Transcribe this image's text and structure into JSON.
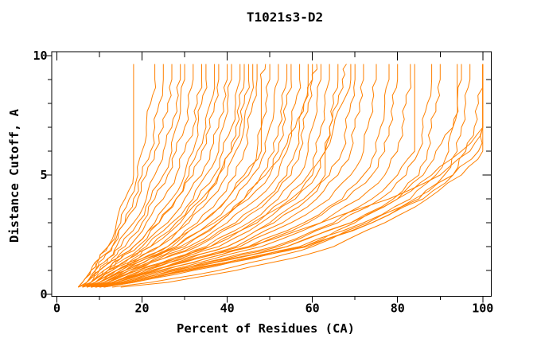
{
  "title": "T1021s3-D2",
  "colors": {
    "curve": "#FF8000",
    "axis": "#000000",
    "text": "#000000",
    "background": "#FFFFFF"
  },
  "axes": {
    "x_label": "Percent of Residues (CA)",
    "y_label": "Distance Cutoff, A",
    "x_tick_labels": [
      "0",
      "20",
      "40",
      "60",
      "80",
      "100"
    ],
    "y_tick_labels": [
      "0",
      "5",
      "10"
    ]
  },
  "chart_data": {
    "type": "line",
    "title": "T1021s3-D2",
    "xlabel": "Percent of Residues (CA)",
    "ylabel": "Distance Cutoff, A",
    "xlim": [
      0,
      100
    ],
    "ylim": [
      0,
      10
    ],
    "grid": false,
    "legend": null,
    "x_ticks_major": [
      0,
      20,
      40,
      60,
      80,
      100
    ],
    "x_ticks_minor": [
      10,
      30,
      50,
      70,
      90
    ],
    "y_ticks_major": [
      0,
      5,
      10
    ],
    "y_ticks_minor": [
      1,
      2,
      3,
      4,
      6,
      7,
      8,
      9
    ],
    "cutoff_levels": [
      0.3,
      0.5,
      1,
      1.5,
      2,
      3,
      4,
      5,
      6,
      7,
      8,
      9,
      9.65
    ],
    "curves": [
      [
        5,
        6,
        8,
        10,
        12,
        14,
        16,
        18,
        18,
        18,
        18,
        18,
        18
      ],
      [
        5,
        6,
        8,
        10,
        12,
        15,
        17,
        19,
        20,
        21,
        22,
        23,
        23
      ],
      [
        6,
        7,
        9,
        11,
        13,
        16,
        18,
        20,
        22,
        23,
        24,
        25,
        25
      ],
      [
        5,
        6,
        8,
        10,
        13,
        16,
        19,
        21,
        23,
        25,
        26,
        27,
        27
      ],
      [
        6,
        7,
        9,
        12,
        14,
        18,
        21,
        23,
        25,
        27,
        28,
        29,
        29
      ],
      [
        7,
        8,
        10,
        12,
        15,
        19,
        22,
        25,
        27,
        28,
        29,
        30,
        30
      ],
      [
        5,
        7,
        10,
        13,
        16,
        20,
        23,
        26,
        28,
        30,
        31,
        32,
        32
      ],
      [
        6,
        8,
        11,
        14,
        17,
        21,
        25,
        28,
        30,
        32,
        33,
        34,
        34
      ],
      [
        7,
        9,
        12,
        15,
        18,
        23,
        27,
        30,
        32,
        33,
        34,
        35,
        35
      ],
      [
        6,
        8,
        11,
        15,
        19,
        24,
        28,
        31,
        33,
        35,
        36,
        37,
        37
      ],
      [
        5,
        7,
        10,
        14,
        18,
        24,
        28,
        32,
        34,
        36,
        37,
        38,
        38
      ],
      [
        6,
        8,
        12,
        16,
        20,
        26,
        30,
        34,
        36,
        38,
        39,
        40,
        40
      ],
      [
        7,
        9,
        13,
        17,
        21,
        27,
        32,
        35,
        38,
        39,
        40,
        41,
        41
      ],
      [
        6,
        9,
        13,
        18,
        22,
        28,
        33,
        37,
        39,
        41,
        42,
        43,
        43
      ],
      [
        8,
        10,
        14,
        19,
        24,
        30,
        35,
        38,
        41,
        42,
        43,
        44,
        44
      ],
      [
        5,
        8,
        12,
        17,
        22,
        29,
        34,
        38,
        41,
        43,
        44,
        45,
        45
      ],
      [
        6,
        9,
        14,
        19,
        24,
        31,
        36,
        40,
        42,
        44,
        45,
        46,
        46
      ],
      [
        7,
        10,
        15,
        20,
        26,
        33,
        38,
        42,
        44,
        45,
        46,
        47,
        47
      ],
      [
        8,
        11,
        16,
        21,
        27,
        34,
        40,
        44,
        48,
        48,
        48,
        48,
        49
      ],
      [
        6,
        9,
        14,
        20,
        26,
        34,
        40,
        45,
        47,
        48,
        49,
        50,
        50
      ],
      [
        7,
        10,
        16,
        22,
        28,
        36,
        42,
        46,
        49,
        50,
        51,
        52,
        52
      ],
      [
        8,
        12,
        17,
        23,
        30,
        38,
        44,
        48,
        51,
        52,
        53,
        54,
        54
      ],
      [
        6,
        10,
        16,
        22,
        29,
        38,
        45,
        50,
        52,
        53,
        54,
        55,
        55
      ],
      [
        7,
        11,
        17,
        24,
        31,
        40,
        47,
        52,
        54,
        55,
        56,
        57,
        57
      ],
      [
        8,
        12,
        18,
        25,
        32,
        42,
        49,
        54,
        56,
        57,
        58,
        59,
        59
      ],
      [
        7,
        11,
        18,
        25,
        33,
        43,
        50,
        55,
        57,
        58,
        59,
        60,
        60
      ],
      [
        7,
        10,
        15,
        21,
        28,
        37,
        44,
        49,
        53,
        56,
        58,
        60,
        61
      ],
      [
        8,
        12,
        19,
        27,
        35,
        45,
        52,
        57,
        59,
        60,
        61,
        62,
        62
      ],
      [
        7,
        12,
        19,
        28,
        36,
        46,
        54,
        59,
        61,
        62,
        63,
        64,
        64
      ],
      [
        8,
        13,
        20,
        29,
        38,
        48,
        56,
        61,
        63,
        64,
        65,
        66,
        66
      ],
      [
        9,
        14,
        22,
        31,
        40,
        50,
        58,
        63,
        63,
        64,
        66,
        67,
        68
      ],
      [
        9,
        13,
        20,
        28,
        36,
        47,
        55,
        60,
        63,
        65,
        67,
        69,
        69
      ],
      [
        8,
        13,
        21,
        30,
        40,
        51,
        59,
        64,
        67,
        68,
        69,
        70,
        70
      ],
      [
        9,
        14,
        23,
        32,
        42,
        53,
        61,
        66,
        69,
        70,
        71,
        72,
        72
      ],
      [
        8,
        14,
        23,
        33,
        43,
        55,
        64,
        69,
        72,
        73,
        74,
        75,
        75
      ],
      [
        9,
        15,
        25,
        35,
        45,
        58,
        67,
        72,
        75,
        76,
        77,
        78,
        78
      ],
      [
        8,
        14,
        24,
        35,
        46,
        59,
        68,
        74,
        77,
        78,
        79,
        80,
        80
      ],
      [
        9,
        15,
        26,
        37,
        48,
        62,
        71,
        77,
        80,
        81,
        82,
        83,
        83
      ],
      [
        10,
        16,
        27,
        39,
        51,
        65,
        74,
        80,
        84,
        84,
        84,
        84,
        84
      ],
      [
        9,
        16,
        27,
        40,
        52,
        66,
        76,
        82,
        85,
        86,
        87,
        88,
        88
      ],
      [
        10,
        17,
        29,
        42,
        54,
        69,
        79,
        85,
        87,
        88,
        89,
        90,
        90
      ],
      [
        9,
        16,
        28,
        41,
        54,
        69,
        80,
        86,
        89,
        93,
        94,
        94,
        94
      ],
      [
        10,
        17,
        30,
        44,
        57,
        72,
        83,
        89,
        92,
        93,
        94,
        95,
        95
      ],
      [
        11,
        18,
        31,
        45,
        59,
        74,
        85,
        91,
        94,
        95,
        96,
        97,
        97
      ],
      [
        10,
        17,
        30,
        44,
        58,
        74,
        86,
        93,
        96,
        98,
        99,
        100,
        100
      ],
      [
        8,
        13,
        22,
        33,
        45,
        62,
        78,
        90,
        97,
        100,
        100,
        100,
        100
      ],
      [
        11,
        18,
        32,
        46,
        58,
        70,
        80,
        88,
        95,
        100,
        100,
        100,
        100
      ],
      [
        13,
        22,
        38,
        50,
        60,
        73,
        84,
        93,
        99,
        100,
        100,
        100,
        100
      ],
      [
        15,
        26,
        42,
        55,
        65,
        77,
        87,
        95,
        100,
        100,
        100,
        100,
        100
      ]
    ]
  }
}
